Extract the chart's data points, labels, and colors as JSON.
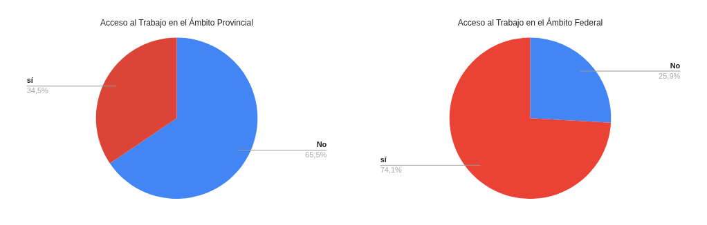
{
  "chart_data": [
    {
      "type": "pie",
      "title": "Acceso al Trabajo en el Ámbito Provincial",
      "categories": [
        "No",
        "sí"
      ],
      "values": [
        65.5,
        34.5
      ],
      "colors": [
        "#4285f4",
        "#db4437"
      ],
      "value_labels": [
        "65,5%",
        "34,5%"
      ],
      "legend": false
    },
    {
      "type": "pie",
      "title": "Acceso al Trabajo en el Ámbito Federal",
      "categories": [
        "No",
        "sí"
      ],
      "values": [
        25.9,
        74.1
      ],
      "colors": [
        "#4285f4",
        "#ea4335"
      ],
      "value_labels": [
        "25,9%",
        "74,1%"
      ],
      "legend": false
    }
  ]
}
